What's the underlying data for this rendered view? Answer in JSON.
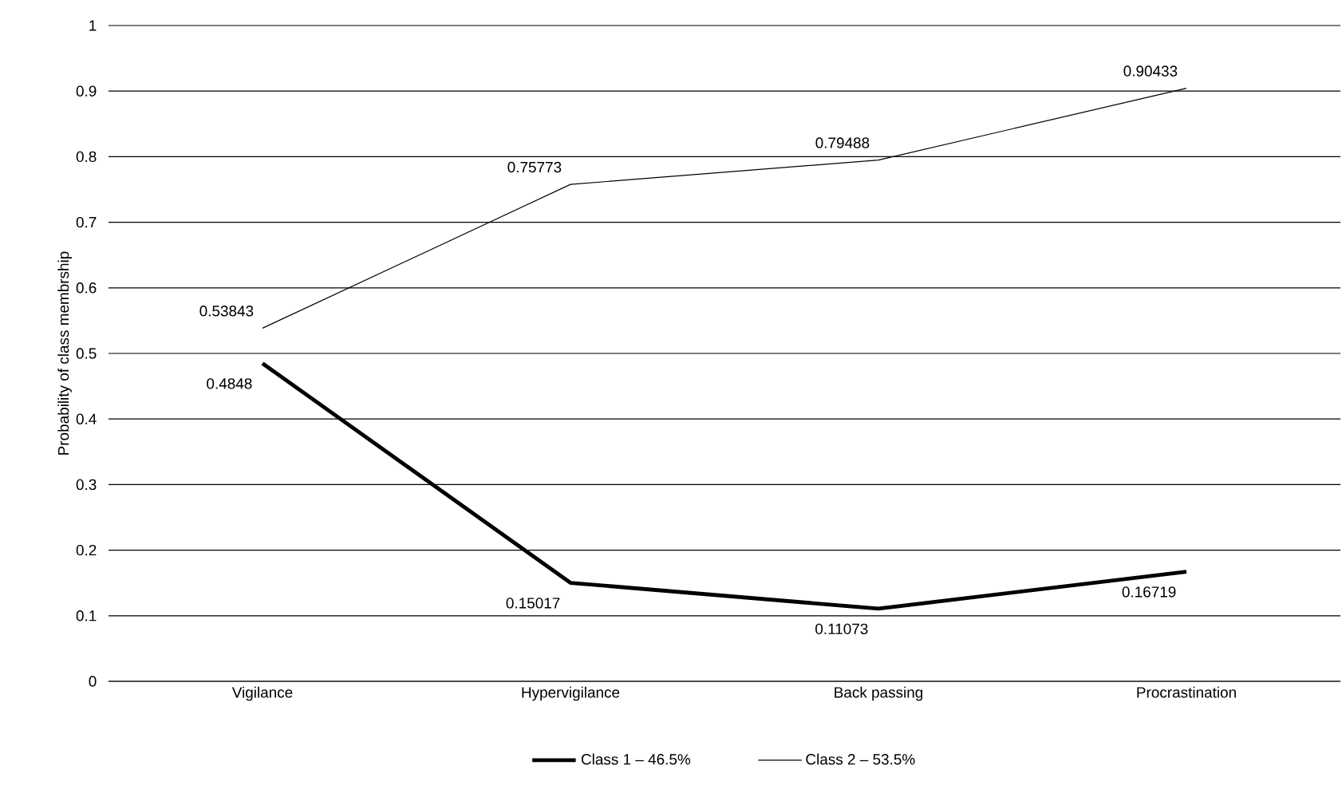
{
  "chart_data": {
    "type": "line",
    "ylabel": "Probability of class membrship",
    "categories": [
      "Vigilance",
      "Hypervigilance",
      "Back passing",
      "Procrastination"
    ],
    "series": [
      {
        "name": "Class 1 – 46.5%",
        "color": "#000000",
        "values": [
          0.4848,
          0.15017,
          0.11073,
          0.16719
        ]
      },
      {
        "name": "Class 2 – 53.5%",
        "color": "#000000",
        "values": [
          0.53843,
          0.75773,
          0.79488,
          0.90433
        ]
      }
    ],
    "ylim": [
      0,
      1
    ],
    "yticks": [
      0,
      0.1,
      0.2,
      0.3,
      0.4,
      0.5,
      0.6,
      0.7,
      0.8,
      0.9,
      1
    ],
    "grid": "y",
    "legend": "bottom",
    "data_labels": true,
    "marker": "none",
    "line_style": "solid"
  }
}
